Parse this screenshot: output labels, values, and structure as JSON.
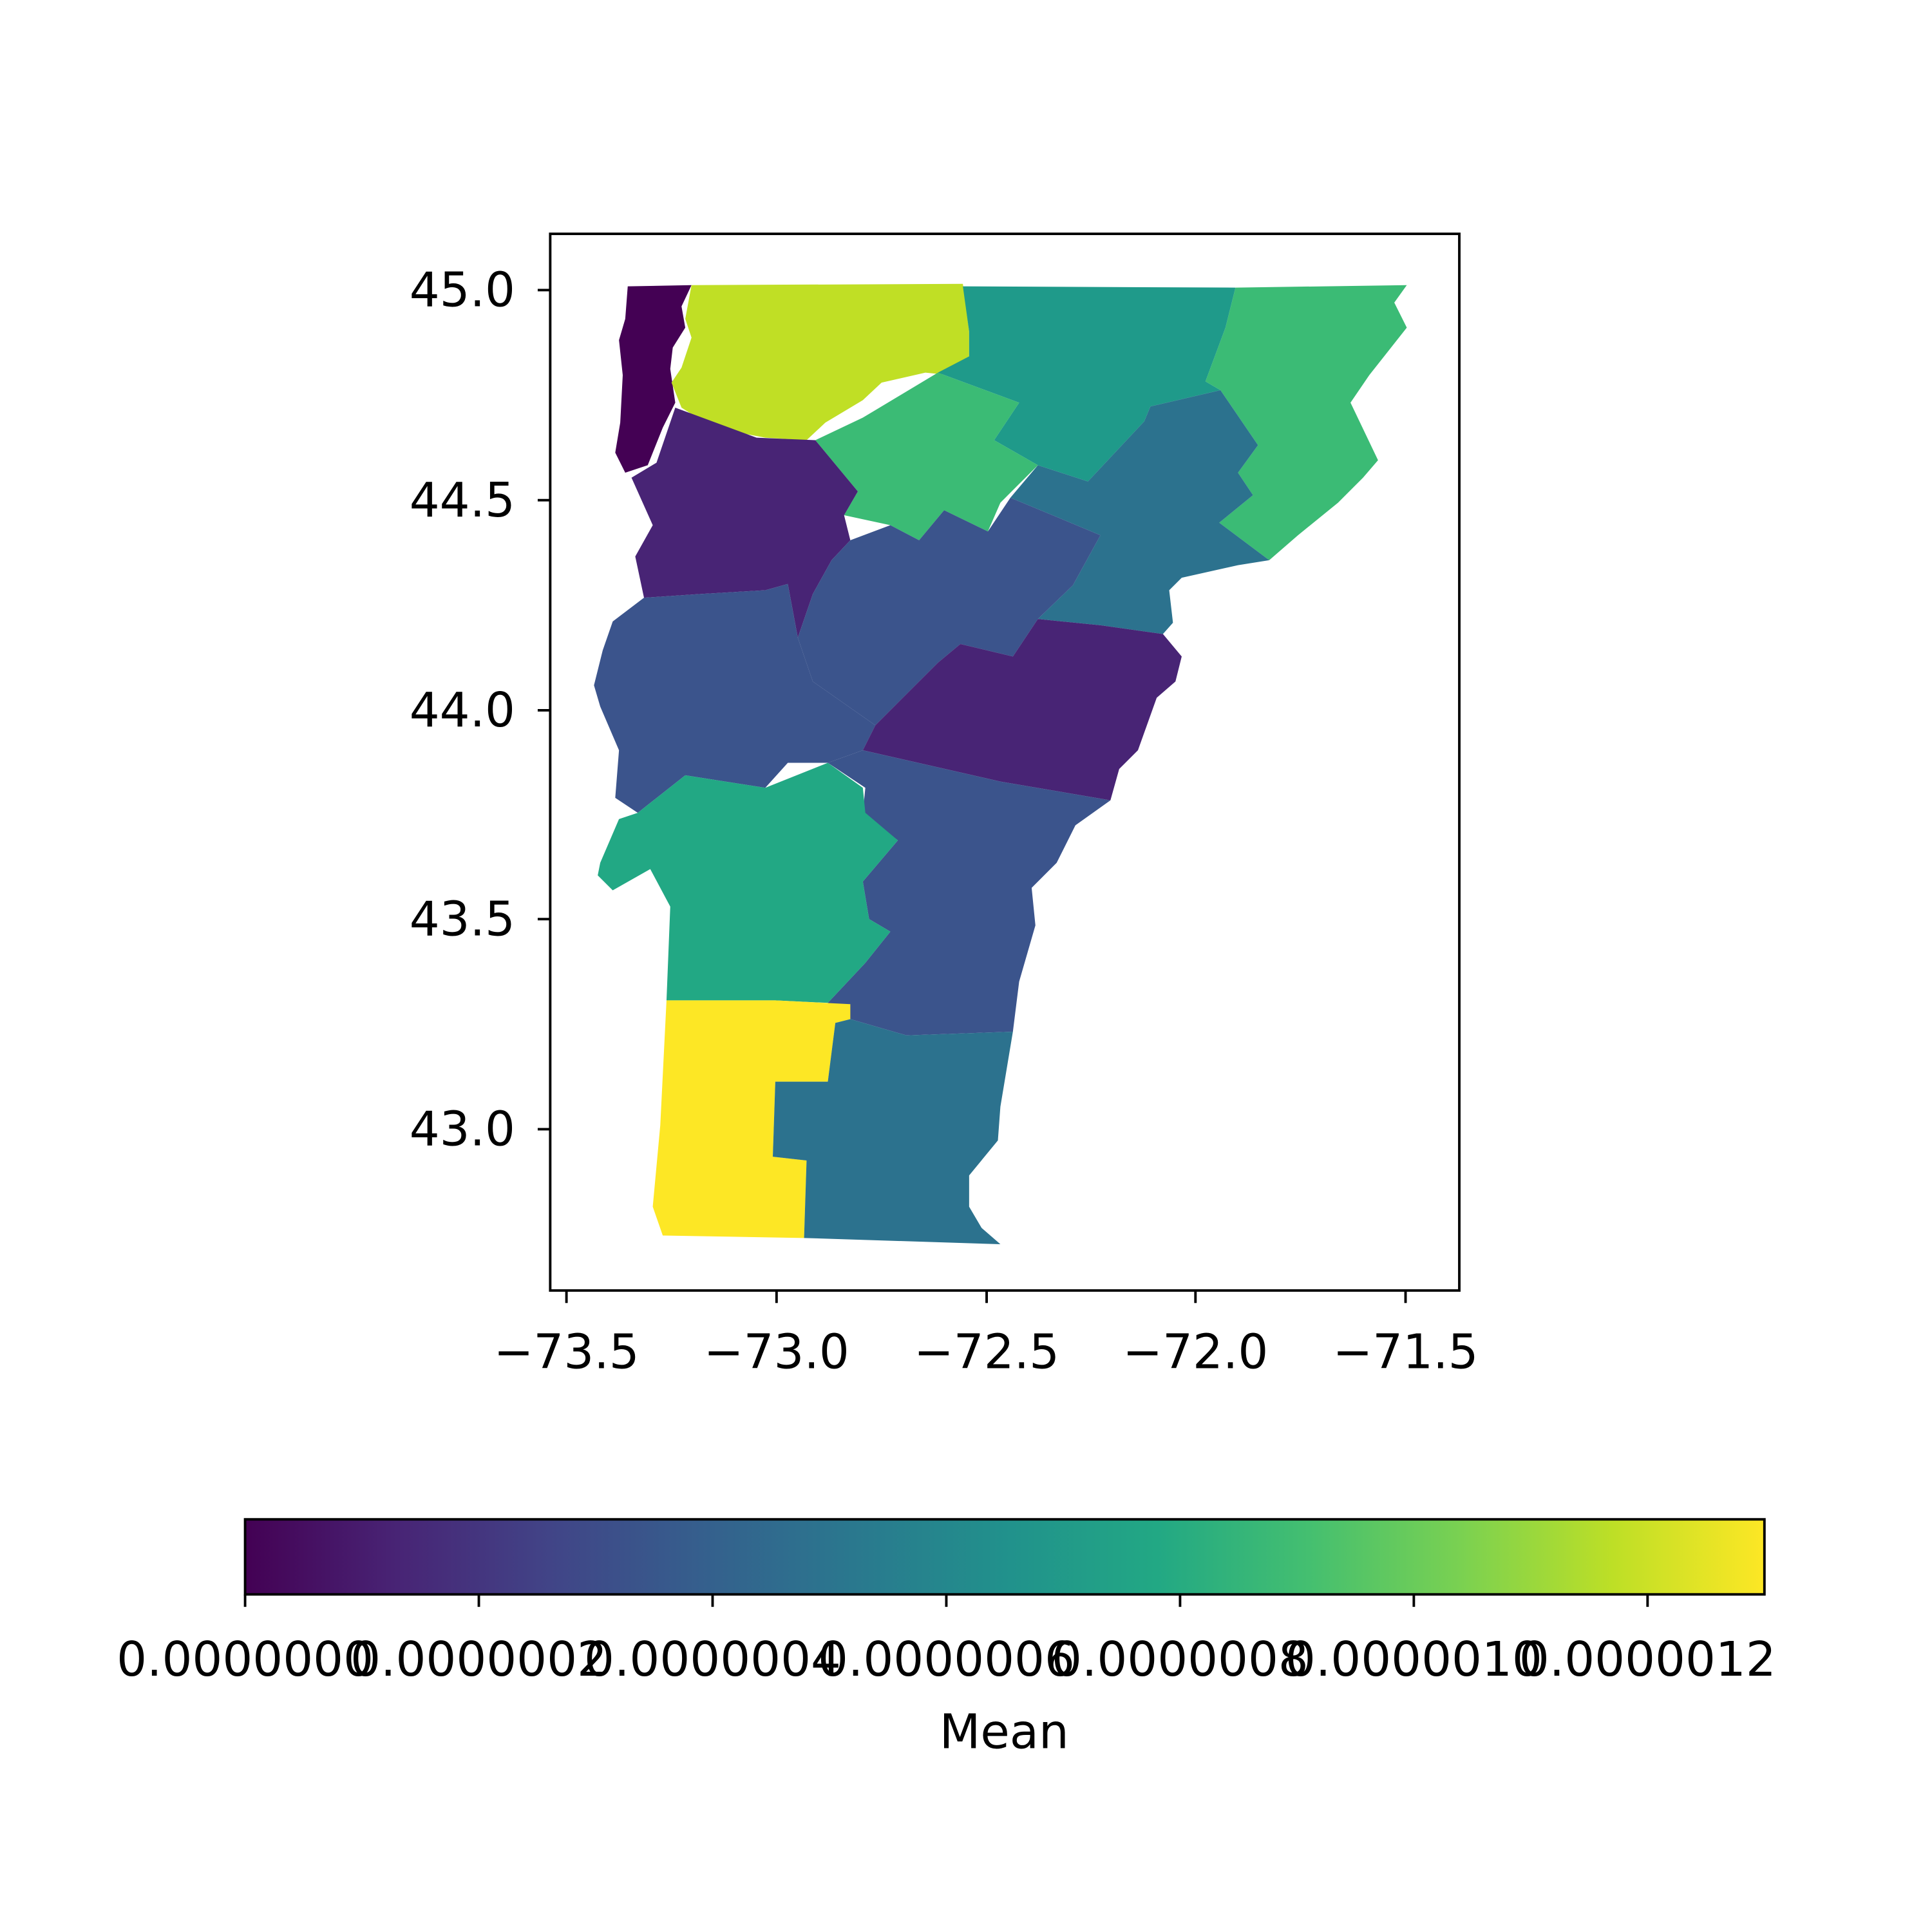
{
  "chart_data": {
    "type": "choropleth",
    "title": "",
    "xlabel": "",
    "ylabel": "",
    "xlim": [
      -73.54,
      -71.38
    ],
    "ylim": [
      42.61,
      45.13
    ],
    "x_ticks": [
      "−73.5",
      "−73.0",
      "−72.5",
      "−72.0",
      "−71.5"
    ],
    "y_ticks": [
      "45.0",
      "44.5",
      "44.0",
      "43.5",
      "43.0"
    ],
    "colormap": "viridis",
    "colorbar": {
      "label": "Mean",
      "range": [
        0.0,
        1.3e-06
      ],
      "tick_labels": [
        "0.0000000",
        "0.0000002",
        "0.0000004",
        "0.0000006",
        "0.0000008",
        "0.0000010",
        "0.0000012"
      ],
      "tick_values": [
        0.0,
        2e-07,
        4e-07,
        6e-07,
        8e-07,
        1e-06,
        1.2e-06
      ]
    },
    "regions": [
      {
        "value": 0.0,
        "color": "#440154"
      },
      {
        "value": 1e-06,
        "color": "#c0df25"
      },
      {
        "value": 6e-07,
        "color": "#1f9a8a"
      },
      {
        "value": 7.5e-07,
        "color": "#3bbb75"
      },
      {
        "value": 7.5e-07,
        "color": "#3bbb75"
      },
      {
        "value": 1e-07,
        "color": "#482475"
      },
      {
        "value": 4e-07,
        "color": "#2c728e"
      },
      {
        "value": 3e-07,
        "color": "#3b548c"
      },
      {
        "value": 3e-07,
        "color": "#3b548c"
      },
      {
        "value": 1e-07,
        "color": "#482475"
      },
      {
        "value": 3e-07,
        "color": "#3b548c"
      },
      {
        "value": 6.8e-07,
        "color": "#22a884"
      },
      {
        "value": 1.3e-06,
        "color": "#fde725"
      },
      {
        "value": 4e-07,
        "color": "#2c728e"
      }
    ]
  }
}
